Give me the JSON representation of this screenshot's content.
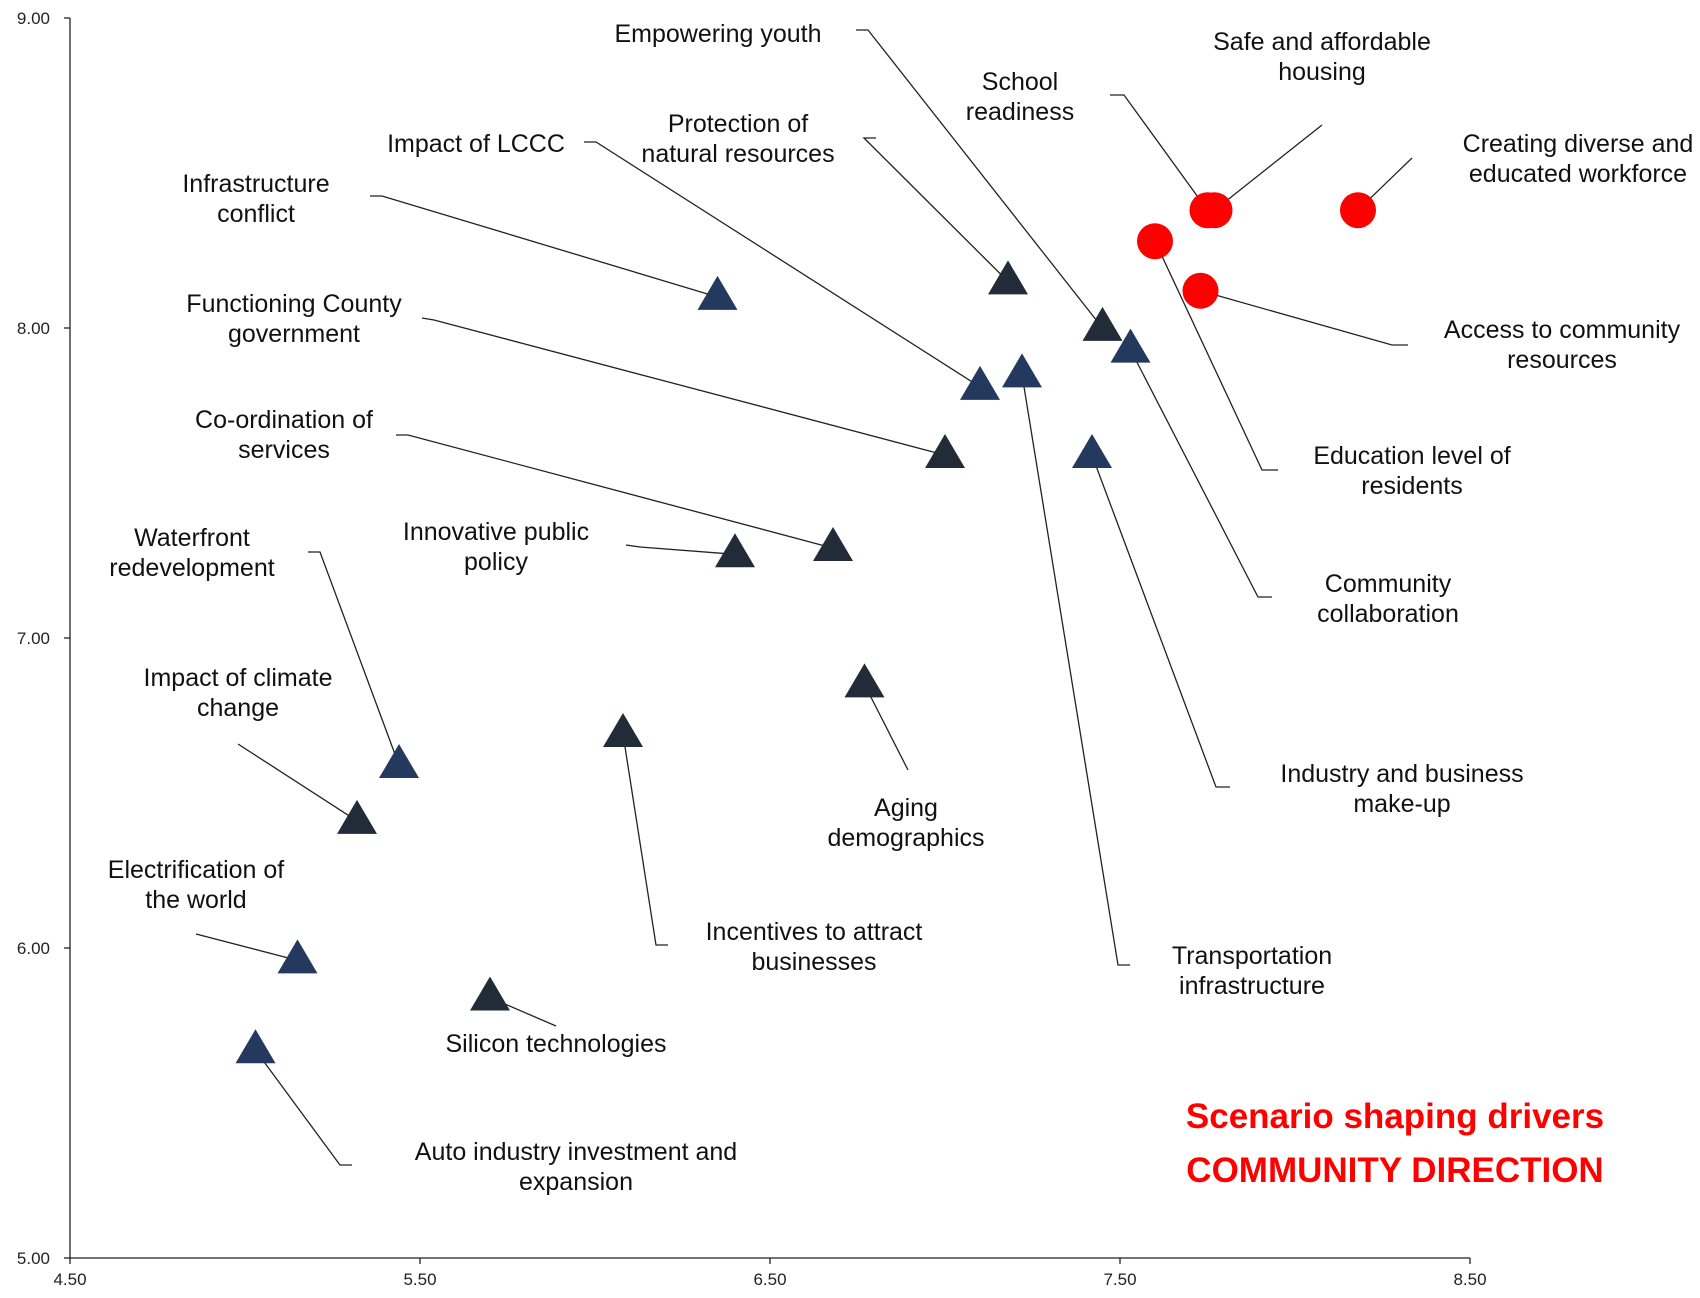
{
  "chart_data": {
    "type": "scatter",
    "title_lines": [
      "Scenario shaping drivers",
      "COMMUNITY DIRECTION"
    ],
    "xlabel": "",
    "ylabel": "",
    "xlim": [
      4.5,
      8.5
    ],
    "ylim": [
      5.0,
      9.0
    ],
    "x_ticks": [
      "4.50",
      "5.50",
      "6.50",
      "7.50",
      "8.50"
    ],
    "y_ticks": [
      "5.00",
      "6.00",
      "7.00",
      "8.00",
      "9.00"
    ],
    "colors": {
      "red": "#ff0000",
      "navy": "#23395d",
      "dark": "#222b38"
    },
    "points": [
      {
        "x": 7.77,
        "y": 8.38,
        "marker": "circle",
        "color": "red",
        "label_lines": [
          "Safe and affordable",
          "housing"
        ]
      },
      {
        "x": 8.18,
        "y": 8.38,
        "marker": "circle",
        "color": "red",
        "label_lines": [
          "Creating diverse and",
          "educated workforce"
        ]
      },
      {
        "x": 7.6,
        "y": 8.28,
        "marker": "circle",
        "color": "red",
        "label_lines": [
          "Education level of",
          "residents"
        ]
      },
      {
        "x": 7.73,
        "y": 8.12,
        "marker": "circle",
        "color": "red",
        "label_lines": [
          "Access to community",
          "resources"
        ]
      },
      {
        "x": 7.18,
        "y": 8.15,
        "marker": "triangle",
        "color": "dark",
        "label_lines": [
          "Protection of",
          "natural resources"
        ]
      },
      {
        "x": 7.45,
        "y": 8.0,
        "marker": "triangle",
        "color": "dark",
        "label_lines": [
          "Empowering youth"
        ]
      },
      {
        "x": 7.53,
        "y": 7.93,
        "marker": "triangle",
        "color": "navy",
        "label_lines": [
          "Community",
          "collaboration"
        ]
      },
      {
        "x": 7.75,
        "y": 8.38,
        "marker": "circle",
        "color": "red",
        "label_lines": [
          "School",
          "readiness"
        ]
      },
      {
        "x": 6.35,
        "y": 8.1,
        "marker": "triangle",
        "color": "navy",
        "label_lines": [
          "Infrastructure",
          "conflict"
        ]
      },
      {
        "x": 7.1,
        "y": 7.81,
        "marker": "triangle",
        "color": "navy",
        "label_lines": [
          "Impact of LCCC"
        ]
      },
      {
        "x": 7.22,
        "y": 7.85,
        "marker": "triangle",
        "color": "navy",
        "label_lines": [
          "Transportation",
          "infrastructure"
        ]
      },
      {
        "x": 7.0,
        "y": 7.59,
        "marker": "triangle",
        "color": "dark",
        "label_lines": [
          "Functioning County",
          "government"
        ]
      },
      {
        "x": 7.42,
        "y": 7.59,
        "marker": "triangle",
        "color": "navy",
        "label_lines": [
          "Industry and business",
          "make-up"
        ]
      },
      {
        "x": 6.68,
        "y": 7.29,
        "marker": "triangle",
        "color": "dark",
        "label_lines": [
          "Co-ordination of",
          "services"
        ]
      },
      {
        "x": 6.4,
        "y": 7.27,
        "marker": "triangle",
        "color": "dark",
        "label_lines": [
          "Innovative public",
          "policy"
        ]
      },
      {
        "x": 6.77,
        "y": 6.85,
        "marker": "triangle",
        "color": "dark",
        "label_lines": [
          "Aging",
          "demographics"
        ]
      },
      {
        "x": 6.08,
        "y": 6.69,
        "marker": "triangle",
        "color": "dark",
        "label_lines": [
          "Incentives to attract",
          "businesses"
        ]
      },
      {
        "x": 5.44,
        "y": 6.59,
        "marker": "triangle",
        "color": "navy",
        "label_lines": [
          "Waterfront",
          "redevelopment"
        ]
      },
      {
        "x": 5.32,
        "y": 6.41,
        "marker": "triangle",
        "color": "dark",
        "label_lines": [
          "Impact of climate",
          "change"
        ]
      },
      {
        "x": 5.15,
        "y": 5.96,
        "marker": "triangle",
        "color": "navy",
        "label_lines": [
          "Electrification of",
          "the world"
        ]
      },
      {
        "x": 5.7,
        "y": 5.84,
        "marker": "triangle",
        "color": "dark",
        "label_lines": [
          "Silicon technologies"
        ]
      },
      {
        "x": 5.03,
        "y": 5.67,
        "marker": "triangle",
        "color": "navy",
        "label_lines": [
          "Auto industry investment and",
          "expansion"
        ]
      }
    ]
  }
}
